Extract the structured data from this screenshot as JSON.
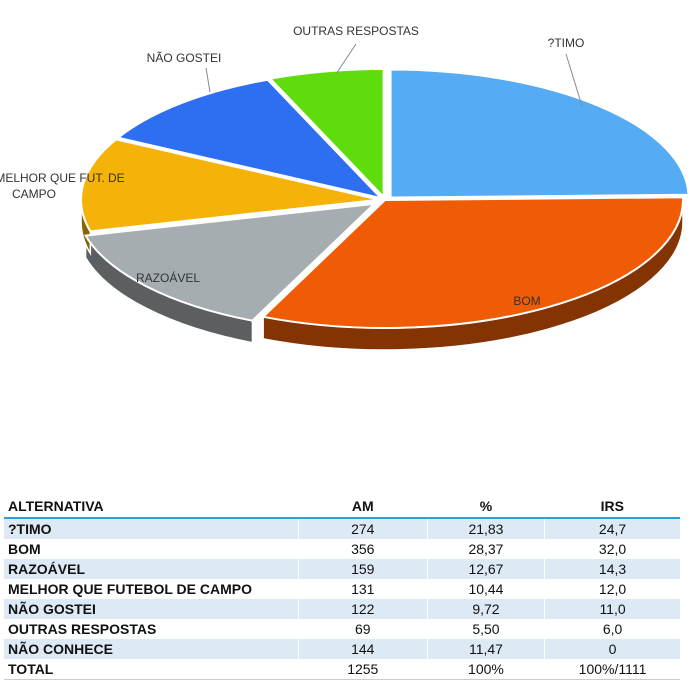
{
  "chart_data": {
    "type": "pie",
    "title": "",
    "slices": [
      {
        "label": "?TIMO",
        "value": 21.83,
        "color": "#56abf5"
      },
      {
        "label": "BOM",
        "value": 28.37,
        "color": "#f05c05"
      },
      {
        "label": "RAZOÁVEL",
        "value": 12.67,
        "color": "#a5adb0"
      },
      {
        "label": "MELHOR QUE FUT. DE CAMPO",
        "value": 10.44,
        "color": "#f5b30a"
      },
      {
        "label": "NÃO GOSTEI",
        "value": 9.72,
        "color": "#2d6ff0"
      },
      {
        "label": "OUTRAS RESPOSTAS",
        "value": 5.5,
        "color": "#5edc0c"
      }
    ]
  },
  "table": {
    "headers": [
      "ALTERNATIVA",
      "AM",
      "%",
      "IRS"
    ],
    "rows": [
      [
        "?TIMO",
        "274",
        "21,83",
        "24,7"
      ],
      [
        "BOM",
        "356",
        "28,37",
        "32,0"
      ],
      [
        "RAZOÁVEL",
        "159",
        "12,67",
        "14,3"
      ],
      [
        "MELHOR QUE FUTEBOL DE CAMPO",
        "131",
        "10,44",
        "12,0"
      ],
      [
        "NÃO GOSTEI",
        "122",
        "9,72",
        "11,0"
      ],
      [
        "OUTRAS RESPOSTAS",
        "69",
        "5,50",
        "6,0"
      ],
      [
        "NÃO CONHECE",
        "144",
        "11,47",
        "0"
      ],
      [
        "TOTAL",
        "1255",
        "100%",
        "100%/1111"
      ]
    ]
  }
}
